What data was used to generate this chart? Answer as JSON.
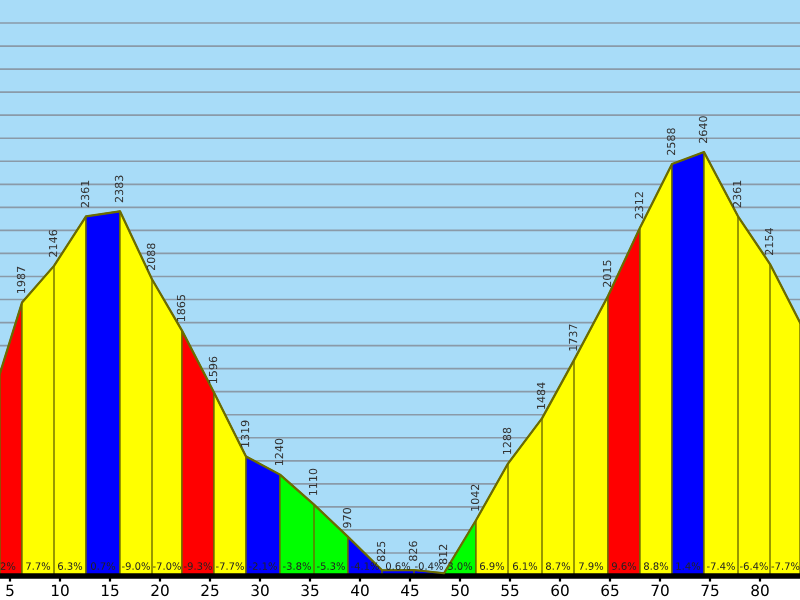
{
  "chart_data": {
    "type": "area",
    "series": [
      {
        "type": "line",
        "color": "#6b6b00",
        "x": [
          4,
          6.2,
          9.4,
          12.6,
          16,
          19.2,
          22.2,
          25.4,
          28.6,
          32,
          35.4,
          38.8,
          42.2,
          45.4,
          48.4,
          51.6,
          54.8,
          58.2,
          61.4,
          64.8,
          68,
          71.2,
          74.4,
          77.8,
          81,
          84
        ],
        "values": [
          1680,
          1987,
          2146,
          2361,
          2383,
          2088,
          1865,
          1596,
          1319,
          1240,
          1110,
          970,
          825,
          826,
          812,
          1042,
          1288,
          1484,
          1737,
          2015,
          2312,
          2588,
          2640,
          2361,
          2154,
          1900
        ],
        "value_labels": [
          null,
          "1987",
          "2146",
          "2361",
          "2383",
          "2088",
          "1865",
          "1596",
          "1319",
          "1240",
          "1110",
          "970",
          "825",
          "826",
          "812",
          "1042",
          "1288",
          "1484",
          "1737",
          "2015",
          "2312",
          "2588",
          "2640",
          "2361",
          "2154",
          null
        ]
      },
      {
        "color": "#ff0000",
        "x": [
          4,
          6.2
        ],
        "values": [
          1680,
          1987
        ]
      },
      {
        "color": "#ffff00",
        "x": [
          6.2,
          9.4,
          12.6
        ],
        "values": [
          1987,
          2146,
          2361
        ]
      },
      {
        "color": "#0000ff",
        "x": [
          12.6,
          16
        ],
        "values": [
          2361,
          2383
        ]
      },
      {
        "color": "#ffff00",
        "x": [
          16,
          19.2,
          22.2
        ],
        "values": [
          2383,
          2088,
          1865
        ]
      },
      {
        "color": "#ff0000",
        "x": [
          22.2,
          25.4
        ],
        "values": [
          1865,
          1596
        ]
      },
      {
        "color": "#ffff00",
        "x": [
          25.4,
          28.6
        ],
        "values": [
          1596,
          1319
        ]
      },
      {
        "color": "#0000ff",
        "x": [
          28.6,
          32
        ],
        "values": [
          1319,
          1240
        ]
      },
      {
        "color": "#00ff00",
        "x": [
          32,
          35.4,
          38.8
        ],
        "values": [
          1240,
          1110,
          970
        ]
      },
      {
        "color": "#0000ff",
        "x": [
          38.8,
          42.2,
          45.4,
          48.4
        ],
        "values": [
          970,
          825,
          826,
          812
        ]
      },
      {
        "color": "#00ff00",
        "x": [
          48.4,
          51.6
        ],
        "values": [
          812,
          1042
        ]
      },
      {
        "color": "#ffff00",
        "x": [
          51.6,
          54.8,
          58.2,
          61.4,
          64.8
        ],
        "values": [
          1042,
          1288,
          1484,
          1737,
          2015
        ]
      },
      {
        "color": "#ff0000",
        "x": [
          64.8,
          68
        ],
        "values": [
          2015,
          2312
        ]
      },
      {
        "color": "#ffff00",
        "x": [
          68,
          71.2
        ],
        "values": [
          2312,
          2588
        ]
      },
      {
        "color": "#0000ff",
        "x": [
          71.2,
          74.4
        ],
        "values": [
          2588,
          2640
        ]
      },
      {
        "color": "#ffff00",
        "x": [
          74.4,
          77.8,
          81,
          84
        ],
        "values": [
          2640,
          2361,
          2154,
          1900
        ]
      }
    ],
    "annotations": [
      "2%",
      "7.7%",
      "6.3%",
      "0.7%",
      "-9.0%",
      "-7.0%",
      "-9.3%",
      "-7.7%",
      "-2.1%",
      "-3.8%",
      "-5.3%",
      "-4.1%",
      "0.6%",
      "-0.4%",
      "3.0%",
      "6.9%",
      "6.1%",
      "8.7%",
      "7.9%",
      "9.6%",
      "8.8%",
      "1.4%",
      "-7.4%",
      "-6.4%",
      "-7.7%"
    ],
    "xlim": [
      4,
      84
    ],
    "xticks": [
      5,
      10,
      15,
      20,
      25,
      30,
      35,
      40,
      45,
      50,
      55,
      60,
      65,
      70,
      75,
      80
    ],
    "ylim": [
      800,
      3300
    ],
    "yticks": [
      {
        "value": 900,
        "label": null
      },
      {
        "value": 1000,
        "label": null
      },
      {
        "value": 1100,
        "label": null
      },
      {
        "value": 1200,
        "label": null
      },
      {
        "value": 1300,
        "label": null
      },
      {
        "value": 1400,
        "label": null
      },
      {
        "value": 1500,
        "label": null
      },
      {
        "value": 1600,
        "label": null
      },
      {
        "value": 1700,
        "label": null
      },
      {
        "value": 1800,
        "label": null
      },
      {
        "value": 1900,
        "label": null
      },
      {
        "value": 2000,
        "label": null
      },
      {
        "value": 2100,
        "label": null
      },
      {
        "value": 2200,
        "label": null
      },
      {
        "value": 2300,
        "label": null
      },
      {
        "value": 2400,
        "label": null
      },
      {
        "value": 2500,
        "label": null
      },
      {
        "value": 2600,
        "label": null
      },
      {
        "value": 2700,
        "label": null
      },
      {
        "value": 2800,
        "label": null
      },
      {
        "value": 2900,
        "label": null
      },
      {
        "value": 3000,
        "label": null
      },
      {
        "value": 3100,
        "label": null
      },
      {
        "value": 3200,
        "label": null
      }
    ],
    "grid": "y"
  }
}
